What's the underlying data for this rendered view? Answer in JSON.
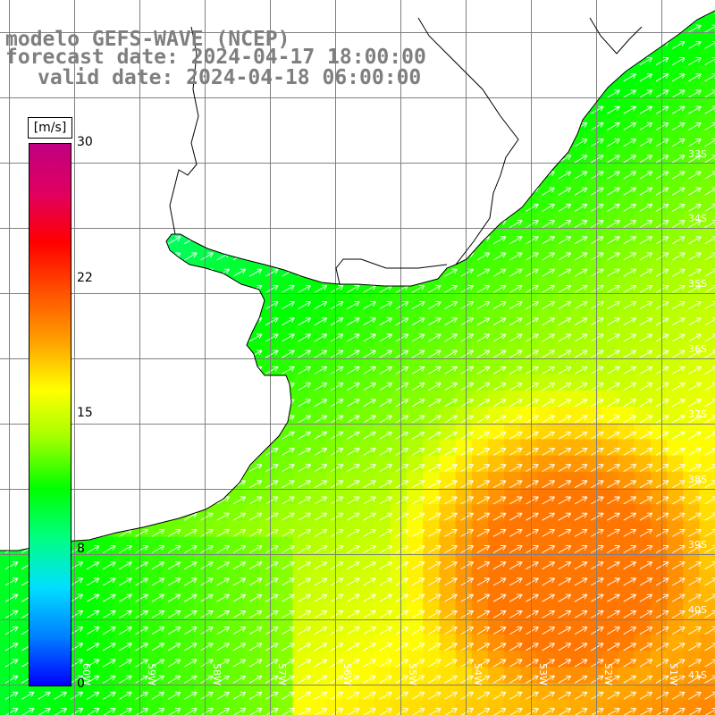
{
  "title": {
    "line1": "modelo GEFS-WAVE (NCEP)",
    "line2": "forecast date: 2024-04-17 18:00:00",
    "line3": "valid date: 2024-04-18 06:00:00"
  },
  "legend": {
    "unit": "[m/s]",
    "min": 0,
    "max": 30,
    "ticks": [
      "30",
      "22",
      "15",
      "8",
      "0"
    ],
    "tick_values": [
      30,
      22.5,
      15,
      7.5,
      0
    ],
    "colormap": [
      "#0000ff",
      "#0080ff",
      "#00e0ff",
      "#00ff80",
      "#00ff00",
      "#a0ff00",
      "#ffff00",
      "#ffa000",
      "#ff5000",
      "#ff0000",
      "#e00060",
      "#c00080"
    ]
  },
  "map": {
    "lat_labels": [
      "33S",
      "34S",
      "35S",
      "36S",
      "37S",
      "38S",
      "39S",
      "40S",
      "41S"
    ],
    "lon_labels": [
      "60W",
      "59W",
      "58W",
      "57W",
      "56W",
      "55W",
      "54W",
      "53W",
      "52W",
      "51W"
    ],
    "lat_range": [
      -41,
      -30
    ],
    "lon_range": [
      -61,
      -50
    ],
    "field": "wind speed",
    "arrow_color": "#ffffff",
    "land_color": "#ffffff",
    "grid_color": "#808080",
    "coast_color": "#000000"
  }
}
